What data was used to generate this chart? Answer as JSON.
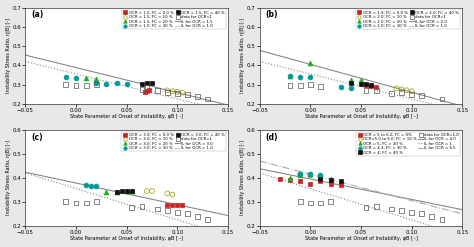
{
  "panels": [
    {
      "label": "(a)",
      "xlim": [
        -0.05,
        0.15
      ],
      "ylim": [
        0.2,
        0.7
      ],
      "yticks": [
        0.2,
        0.3,
        0.4,
        0.5,
        0.6,
        0.7
      ],
      "xticks": [
        -0.05,
        0,
        0.05,
        0.1,
        0.15
      ],
      "line_ocr": {
        "slope": -1.3,
        "intercept": 0.388
      },
      "line_ocr1": {
        "slope": -1.3,
        "intercept": 0.355
      },
      "legend_entries": [
        {
          "label": "OCR = 1.5; FC = 0.0 %",
          "marker": "s",
          "fc": "#cc2222",
          "ec": "#cc2222"
        },
        {
          "label": "OCR = 1.5; FC = 10 %",
          "marker": "o",
          "fc": "none",
          "ec": "#999900"
        },
        {
          "label": "OCR = 1.5; FC = 20 %",
          "marker": "^",
          "fc": "#22aa22",
          "ec": "#22aa22"
        },
        {
          "label": "OCR = 1.5; FC = 30 %",
          "marker": "o",
          "fc": "#009999",
          "ec": "#009999"
        },
        {
          "label": "OCR = 1.5; FC = 40 %",
          "marker": "s",
          "fc": "#111111",
          "ec": "#111111"
        },
        {
          "label": "data for OCR=1",
          "marker": "s",
          "fc": "none",
          "ec": "#555555"
        }
      ],
      "line1_label": "IL for OCR = 1.5",
      "line2_label": "IL for OCR = 1.0",
      "series": [
        {
          "x": [
            0.068,
            0.07,
            0.072
          ],
          "y": [
            0.263,
            0.268,
            0.272
          ],
          "marker": "s",
          "fc": "#cc2222",
          "ec": "#cc2222",
          "ms": 3.5
        },
        {
          "x": [
            0.09,
            0.095,
            0.1,
            0.105
          ],
          "y": [
            0.27,
            0.265,
            0.262,
            0.258
          ],
          "marker": "o",
          "fc": "none",
          "ec": "#999900",
          "ms": 3.5
        },
        {
          "x": [
            0.01,
            0.02
          ],
          "y": [
            0.335,
            0.328
          ],
          "marker": "^",
          "fc": "#22aa22",
          "ec": "#22aa22",
          "ms": 3.5
        },
        {
          "x": [
            -0.01,
            0.0,
            0.02,
            0.03,
            0.04,
            0.05
          ],
          "y": [
            0.34,
            0.335,
            0.31,
            0.305,
            0.31,
            0.305
          ],
          "marker": "o",
          "fc": "#009999",
          "ec": "#009999",
          "ms": 3.5
        },
        {
          "x": [
            0.065,
            0.07,
            0.075
          ],
          "y": [
            0.305,
            0.31,
            0.31
          ],
          "marker": "s",
          "fc": "#111111",
          "ec": "#111111",
          "ms": 3.5
        },
        {
          "x": [
            -0.01,
            0.0,
            0.01,
            0.02,
            0.065,
            0.07,
            0.08,
            0.09,
            0.1,
            0.11,
            0.12,
            0.13
          ],
          "y": [
            0.3,
            0.295,
            0.295,
            0.3,
            0.275,
            0.283,
            0.27,
            0.26,
            0.255,
            0.25,
            0.24,
            0.225
          ],
          "marker": "s",
          "fc": "none",
          "ec": "#555555",
          "ms": 3.5
        }
      ]
    },
    {
      "label": "(b)",
      "xlim": [
        -0.05,
        0.15
      ],
      "ylim": [
        0.2,
        0.7
      ],
      "yticks": [
        0.2,
        0.3,
        0.4,
        0.5,
        0.6,
        0.7
      ],
      "xticks": [
        -0.05,
        0,
        0.05,
        0.1,
        0.15
      ],
      "line_ocr": {
        "slope": -1.45,
        "intercept": 0.405
      },
      "line_ocr1": {
        "slope": -1.3,
        "intercept": 0.355
      },
      "legend_entries": [
        {
          "label": "OCR = 1.9; FC = 0.0 %",
          "marker": "s",
          "fc": "#cc2222",
          "ec": "#cc2222"
        },
        {
          "label": "OCR = 2.0; FC = 10 %",
          "marker": "o",
          "fc": "none",
          "ec": "#999900"
        },
        {
          "label": "OCR = 2.0; FC = 20 %",
          "marker": "^",
          "fc": "#22aa22",
          "ec": "#22aa22"
        },
        {
          "label": "OCR = 2.0; FC = 30 %",
          "marker": "o",
          "fc": "#009999",
          "ec": "#009999"
        },
        {
          "label": "OCR = 2.0; FC = 40 %",
          "marker": "s",
          "fc": "#111111",
          "ec": "#111111"
        },
        {
          "label": "data for OCR=1",
          "marker": "s",
          "fc": "none",
          "ec": "#555555"
        }
      ],
      "line1_label": "IL for OCR = 2.0",
      "line2_label": "IL for OCR = 1.0",
      "series": [
        {
          "x": [
            0.055,
            0.06,
            0.065
          ],
          "y": [
            0.295,
            0.29,
            0.285
          ],
          "marker": "s",
          "fc": "#cc2222",
          "ec": "#cc2222",
          "ms": 3.5
        },
        {
          "x": [
            0.085,
            0.09,
            0.095,
            0.1
          ],
          "y": [
            0.28,
            0.275,
            0.27,
            0.265
          ],
          "marker": "o",
          "fc": "none",
          "ec": "#999900",
          "ms": 3.5
        },
        {
          "x": [
            -0.02,
            0.0,
            0.04,
            0.05
          ],
          "y": [
            0.345,
            0.41,
            0.325,
            0.325
          ],
          "marker": "^",
          "fc": "#22aa22",
          "ec": "#22aa22",
          "ms": 3.5
        },
        {
          "x": [
            -0.02,
            -0.01,
            0.0,
            0.03,
            0.04
          ],
          "y": [
            0.345,
            0.34,
            0.34,
            0.285,
            0.28
          ],
          "marker": "o",
          "fc": "#009999",
          "ec": "#009999",
          "ms": 3.5
        },
        {
          "x": [
            0.04,
            0.05,
            0.055,
            0.06
          ],
          "y": [
            0.31,
            0.305,
            0.305,
            0.3
          ],
          "marker": "s",
          "fc": "#111111",
          "ec": "#111111",
          "ms": 3.5
        },
        {
          "x": [
            -0.02,
            -0.01,
            0.0,
            0.01,
            0.055,
            0.065,
            0.08,
            0.09,
            0.1,
            0.11,
            0.13
          ],
          "y": [
            0.295,
            0.295,
            0.3,
            0.29,
            0.27,
            0.27,
            0.255,
            0.26,
            0.25,
            0.245,
            0.225
          ],
          "marker": "s",
          "fc": "none",
          "ec": "#555555",
          "ms": 3.5
        }
      ]
    },
    {
      "label": "(c)",
      "xlim": [
        -0.05,
        0.15
      ],
      "ylim": [
        0.2,
        0.6
      ],
      "yticks": [
        0.2,
        0.3,
        0.4,
        0.5,
        0.6
      ],
      "xticks": [
        -0.05,
        0,
        0.05,
        0.1,
        0.15
      ],
      "line_ocr": {
        "slope": -0.9,
        "intercept": 0.378
      },
      "line_ocr1": {
        "slope": -1.3,
        "intercept": 0.355
      },
      "legend_entries": [
        {
          "label": "OCR = 3.0; FC = 0.0 %",
          "marker": "s",
          "fc": "#cc2222",
          "ec": "#cc2222"
        },
        {
          "label": "OCR = 3.0; FC = 10 %",
          "marker": "o",
          "fc": "none",
          "ec": "#999900"
        },
        {
          "label": "OCR = 3.0; FC = 20 %",
          "marker": "^",
          "fc": "#22aa22",
          "ec": "#22aa22"
        },
        {
          "label": "OCR = 3.0; FC = 30 %",
          "marker": "o",
          "fc": "#009999",
          "ec": "#009999"
        },
        {
          "label": "OCR = 3.0; FC = 40 %",
          "marker": "s",
          "fc": "#111111",
          "ec": "#111111"
        },
        {
          "label": "data for OCR=1",
          "marker": "s",
          "fc": "none",
          "ec": "#555555"
        }
      ],
      "line1_label": "IL for OCR = 3.0",
      "line2_label": "IL for OCR = 1.0",
      "series": [
        {
          "x": [
            0.09,
            0.095,
            0.1,
            0.105
          ],
          "y": [
            0.285,
            0.285,
            0.285,
            0.285
          ],
          "marker": "s",
          "fc": "#cc2222",
          "ec": "#cc2222",
          "ms": 3.5
        },
        {
          "x": [
            0.07,
            0.075,
            0.09,
            0.095
          ],
          "y": [
            0.345,
            0.345,
            0.335,
            0.33
          ],
          "marker": "o",
          "fc": "none",
          "ec": "#999900",
          "ms": 3.5
        },
        {
          "x": [
            0.03,
            0.04,
            0.05,
            0.055
          ],
          "y": [
            0.34,
            0.34,
            0.345,
            0.345
          ],
          "marker": "^",
          "fc": "#22aa22",
          "ec": "#22aa22",
          "ms": 3.5
        },
        {
          "x": [
            0.01,
            0.015,
            0.02
          ],
          "y": [
            0.37,
            0.365,
            0.365
          ],
          "marker": "o",
          "fc": "#009999",
          "ec": "#009999",
          "ms": 3.5
        },
        {
          "x": [
            0.04,
            0.045,
            0.05,
            0.055
          ],
          "y": [
            0.34,
            0.345,
            0.345,
            0.345
          ],
          "marker": "s",
          "fc": "#111111",
          "ec": "#111111",
          "ms": 3.5
        },
        {
          "x": [
            -0.01,
            0.0,
            0.01,
            0.02,
            0.055,
            0.065,
            0.08,
            0.09,
            0.1,
            0.11,
            0.12,
            0.13
          ],
          "y": [
            0.3,
            0.295,
            0.295,
            0.3,
            0.275,
            0.28,
            0.27,
            0.265,
            0.255,
            0.25,
            0.24,
            0.225
          ],
          "marker": "s",
          "fc": "none",
          "ec": "#555555",
          "ms": 3.5
        }
      ]
    },
    {
      "label": "(d)",
      "xlim": [
        -0.05,
        0.15
      ],
      "ylim": [
        0.2,
        0.6
      ],
      "yticks": [
        0.2,
        0.3,
        0.4,
        0.5,
        0.6
      ],
      "xticks": [
        -0.05,
        0,
        0.05,
        0.1,
        0.15
      ],
      "line_ocr": {
        "slope": -0.85,
        "intercept": 0.395
      },
      "line_ocr1": {
        "slope": -1.3,
        "intercept": 0.355
      },
      "line_ocr65": {
        "slope": -1.1,
        "intercept": 0.415
      },
      "legend_entries": [
        {
          "label": "OCR = 5 to 6.2; FC = 0%",
          "marker": "s",
          "fc": "#cc2222",
          "ec": "#cc2222"
        },
        {
          "label": "OCR=5.0 to 6.0; FC = 10 %",
          "marker": "o",
          "fc": "none",
          "ec": "#999900"
        },
        {
          "label": "OCR = 5; FC = 20 %",
          "marker": "^",
          "fc": "#22aa22",
          "ec": "#22aa22"
        },
        {
          "label": "OCR = 4.3; FC = 30 %",
          "marker": "o",
          "fc": "#009999",
          "ec": "#009999"
        },
        {
          "label": "OCR = 4; FC = 40 %",
          "marker": "s",
          "fc": "#111111",
          "ec": "#111111"
        },
        {
          "label": "data for OCR=1.0",
          "marker": "s",
          "fc": "none",
          "ec": "#555555"
        }
      ],
      "line1_label": "IL for OCR = 4.0",
      "line2_label": "IL for OCR = 1",
      "line3_label": "IL for OCR = 6.5",
      "series": [
        {
          "x": [
            -0.03,
            -0.02,
            -0.01,
            0.0,
            0.01,
            0.02,
            0.03
          ],
          "y": [
            0.395,
            0.39,
            0.385,
            0.375,
            0.385,
            0.375,
            0.37
          ],
          "marker": "s",
          "fc": "#cc2222",
          "ec": "#cc2222",
          "ms": 3.5
        },
        {
          "x": [
            -0.01,
            0.0,
            0.01
          ],
          "y": [
            0.415,
            0.41,
            0.405
          ],
          "marker": "o",
          "fc": "none",
          "ec": "#999900",
          "ms": 3.5
        },
        {
          "x": [
            -0.02,
            -0.01,
            0.0,
            0.01,
            0.02
          ],
          "y": [
            0.4,
            0.41,
            0.415,
            0.405,
            0.395
          ],
          "marker": "^",
          "fc": "#22aa22",
          "ec": "#22aa22",
          "ms": 3.5
        },
        {
          "x": [
            -0.01,
            0.0,
            0.01
          ],
          "y": [
            0.415,
            0.415,
            0.41
          ],
          "marker": "o",
          "fc": "#009999",
          "ec": "#009999",
          "ms": 3.5
        },
        {
          "x": [
            0.01,
            0.02,
            0.03
          ],
          "y": [
            0.395,
            0.39,
            0.385
          ],
          "marker": "s",
          "fc": "#111111",
          "ec": "#111111",
          "ms": 3.5
        },
        {
          "x": [
            -0.01,
            0.0,
            0.01,
            0.02,
            0.055,
            0.065,
            0.08,
            0.09,
            0.1,
            0.11,
            0.12,
            0.13
          ],
          "y": [
            0.3,
            0.295,
            0.295,
            0.3,
            0.275,
            0.28,
            0.27,
            0.265,
            0.255,
            0.25,
            0.24,
            0.225
          ],
          "marker": "s",
          "fc": "none",
          "ec": "#555555",
          "ms": 3.5
        }
      ]
    }
  ],
  "line_color_solid": "#888888",
  "line_color_dot": "#888888",
  "line_color_dashdot": "#888888",
  "xlabel": "State Parameter at Onset of Instability, ψB [ -]",
  "ylabel": "Instability Stress Ratio, η|B| [-]",
  "bg_color": "#e8e8e8"
}
